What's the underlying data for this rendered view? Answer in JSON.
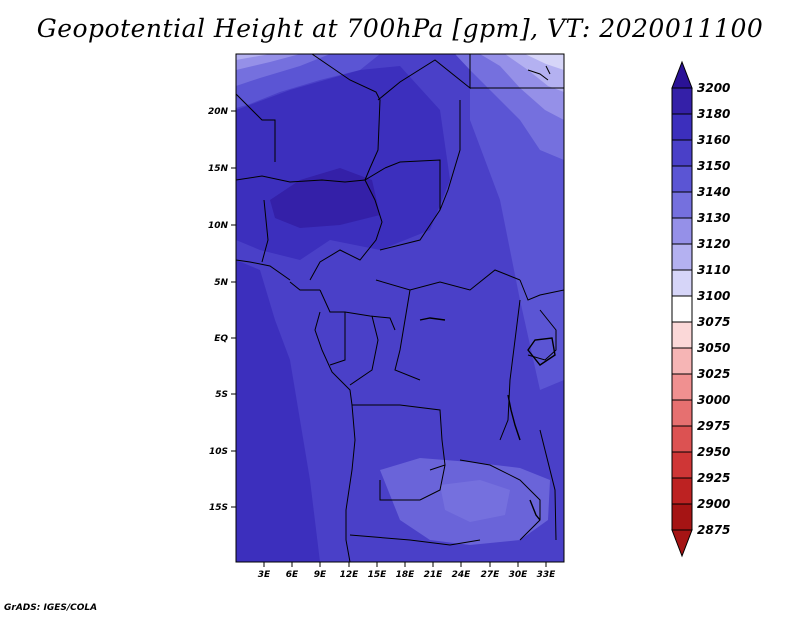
{
  "title": "Geopotential Height at 700hPa [gpm], VT: 2020011100",
  "credit": "GrADS: IGES/COLA",
  "map": {
    "lat_labels": [
      "20N",
      "15N",
      "10N",
      "5N",
      "EQ",
      "5S",
      "10S",
      "15S"
    ],
    "lon_labels": [
      "3E",
      "6E",
      "9E",
      "12E",
      "15E",
      "18E",
      "21E",
      "24E",
      "27E",
      "30E",
      "33E"
    ]
  },
  "colorbar": {
    "levels": [
      "3200",
      "3180",
      "3160",
      "3150",
      "3140",
      "3130",
      "3120",
      "3110",
      "3100",
      "3075",
      "3050",
      "3025",
      "3000",
      "2975",
      "2950",
      "2925",
      "2900",
      "2875"
    ],
    "colors": [
      "#2a1296",
      "#3420a8",
      "#3c2fbd",
      "#4a40c8",
      "#5b55d4",
      "#7570de",
      "#9590e8",
      "#b4b1f1",
      "#d6d5f8",
      "#ffffff",
      "#fbd8d8",
      "#f6b5b5",
      "#f09090",
      "#e67070",
      "#dc5252",
      "#cf3636",
      "#bd2222",
      "#a51414"
    ]
  },
  "chart_data": {
    "type": "heatmap",
    "title": "Geopotential Height at 700hPa [gpm], VT: 2020011100",
    "units": "gpm",
    "x_ticks": [
      "3E",
      "6E",
      "9E",
      "12E",
      "15E",
      "18E",
      "21E",
      "24E",
      "27E",
      "30E",
      "33E"
    ],
    "y_ticks": [
      "20N",
      "15N",
      "10N",
      "5N",
      "EQ",
      "5S",
      "10S",
      "15S"
    ],
    "legend_levels": [
      3200,
      3180,
      3160,
      3150,
      3140,
      3130,
      3120,
      3110,
      3100,
      3075,
      3050,
      3025,
      3000,
      2975,
      2950,
      2925,
      2900,
      2875
    ],
    "regions": [
      {
        "area": "northwest corner (about 0-10E, 20-24N)",
        "value_range": [
          3100,
          3140
        ]
      },
      {
        "area": "northeast corner (about 25-35E, 17-24N)",
        "value_range": [
          3100,
          3140
        ]
      },
      {
        "area": "central Africa bulk",
        "value_range": [
          3150,
          3160
        ]
      },
      {
        "area": "Lake Chad basin (about 10-15E, 12-15N)",
        "value_range": [
          3160,
          3180
        ]
      },
      {
        "area": "southern Africa (about 15-30E, 10-18S)",
        "value_range": [
          3130,
          3150
        ]
      }
    ]
  }
}
